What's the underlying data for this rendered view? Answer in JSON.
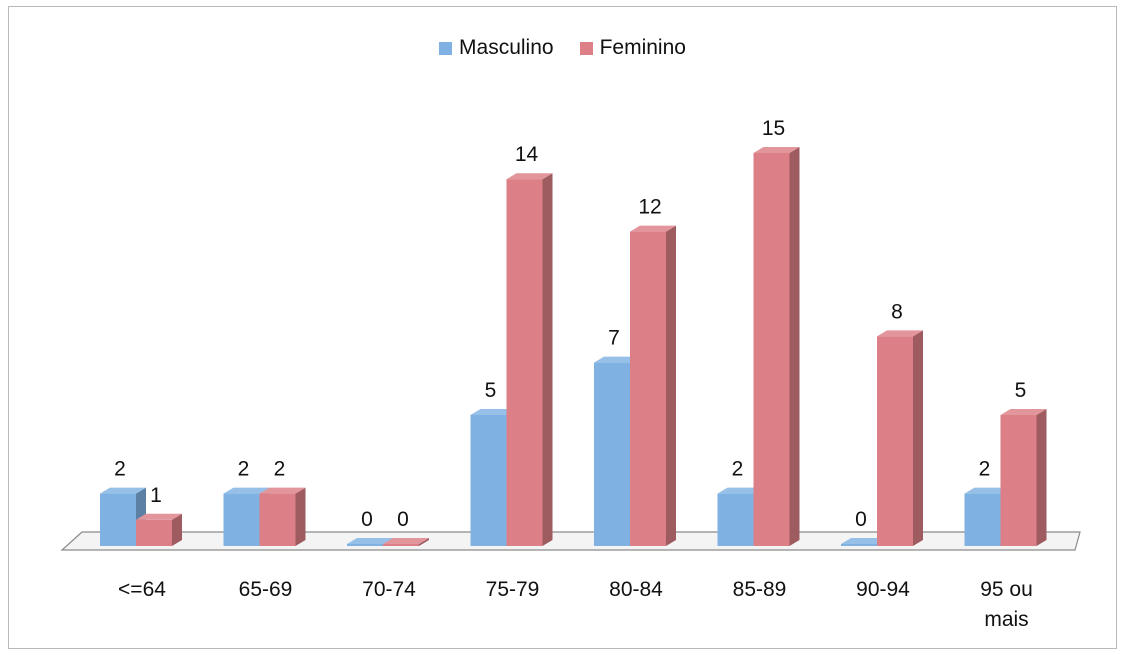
{
  "chart_data": {
    "type": "bar",
    "categories": [
      "<=64",
      "65-69",
      "70-74",
      "75-79",
      "80-84",
      "85-89",
      "90-94",
      "95 ou mais"
    ],
    "series": [
      {
        "name": "Masculino",
        "values": [
          2,
          2,
          0,
          5,
          7,
          2,
          0,
          2
        ],
        "color": "#7fb2e2"
      },
      {
        "name": "Feminino",
        "values": [
          1,
          2,
          0,
          14,
          12,
          15,
          8,
          5
        ],
        "color": "#dc7f86"
      }
    ],
    "ylim": [
      0,
      15
    ],
    "legend": "top",
    "grid": false,
    "style": "3d-clustered-column"
  }
}
